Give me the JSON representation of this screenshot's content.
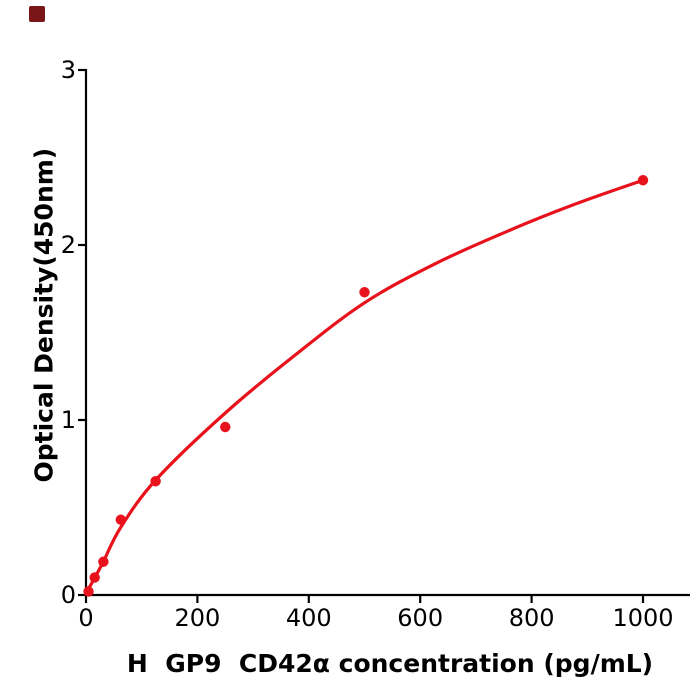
{
  "figure": {
    "background": "#ffffff",
    "corner_marker_color": "#7a1518"
  },
  "chart_data": {
    "type": "scatter",
    "title": "",
    "xlabel": "H  GP9  CD42α concentration (pg/mL)",
    "ylabel": "Optical Density(450nm)",
    "x_ticks": [
      0,
      200,
      400,
      600,
      800,
      1000
    ],
    "x_tick_labels": [
      "0",
      "200",
      "400",
      "600",
      "800",
      "1000"
    ],
    "y_ticks": [
      0,
      1,
      2,
      3
    ],
    "y_tick_labels": [
      "0",
      "1",
      "2",
      "3"
    ],
    "xlim": [
      0,
      1085
    ],
    "ylim": [
      0,
      3
    ],
    "grid": false,
    "legend": "none",
    "marker_color": "#e8121c",
    "line_color": "#e8121c",
    "axis_color": "#000000",
    "points": {
      "concentration_pg_ml": [
        0,
        15.6,
        31.2,
        62.5,
        125,
        250,
        500,
        1000
      ],
      "od_450nm": [
        0.02,
        0.1,
        0.19,
        0.43,
        0.65,
        0.96,
        1.73,
        2.37
      ]
    },
    "fit_curve": {
      "concentration_pg_ml": [
        0,
        16,
        31,
        63,
        126,
        250,
        375,
        500,
        625,
        750,
        875,
        1000
      ],
      "od_450nm": [
        0.01,
        0.1,
        0.19,
        0.39,
        0.66,
        1.04,
        1.37,
        1.67,
        1.89,
        2.07,
        2.23,
        2.37
      ]
    }
  }
}
